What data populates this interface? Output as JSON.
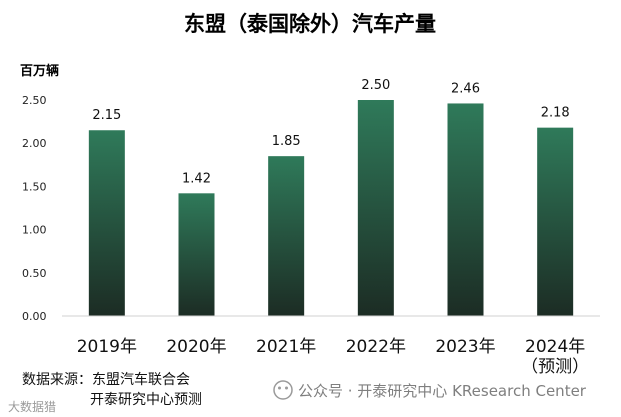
{
  "chart_data": {
    "type": "bar",
    "title": "东盟（泰国除外）汽车产量",
    "ylabel": "百万辆",
    "categories": [
      "2019年",
      "2020年",
      "2021年",
      "2022年",
      "2023年",
      "2024年\n（预测）"
    ],
    "values": [
      2.15,
      1.42,
      1.85,
      2.5,
      2.46,
      2.18
    ],
    "data_labels": [
      "2.15",
      "1.42",
      "1.85",
      "2.50",
      "2.46",
      "2.18"
    ],
    "ylim": [
      0,
      2.5
    ],
    "yticks": [
      "0.00",
      "0.50",
      "1.00",
      "1.50",
      "2.00",
      "2.50"
    ],
    "grid": false,
    "legend": "none",
    "bar_gradient": [
      "#2f7a5a",
      "#1c2c24"
    ]
  },
  "footer": {
    "source_line1": "数据来源：东盟汽车联合会",
    "source_line2": "开泰研究中心预测",
    "watermark": "公众号 · 开泰研究中心 KResearch Center",
    "corner_mark": "大数据猎"
  }
}
